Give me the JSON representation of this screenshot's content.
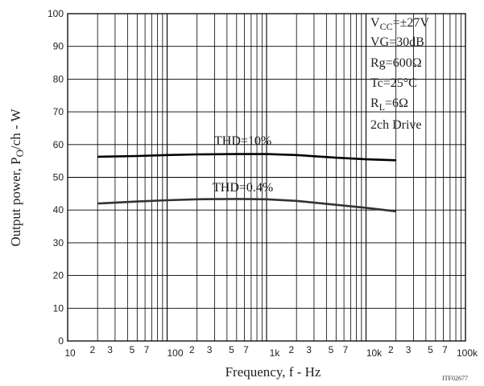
{
  "chart_data": {
    "type": "line",
    "title": "",
    "xlabel": "Frequency, f - Hz",
    "ylabel": "Output power, P_O/ch - W",
    "x_scale": "log",
    "xlim": [
      10,
      100000
    ],
    "ylim": [
      0,
      100
    ],
    "y_ticks": [
      0,
      10,
      20,
      30,
      40,
      50,
      60,
      70,
      80,
      90,
      100
    ],
    "x_tick_labels": [
      {
        "x": 10,
        "label": "10"
      },
      {
        "x": 20,
        "label": "2"
      },
      {
        "x": 30,
        "label": "3"
      },
      {
        "x": 50,
        "label": "5"
      },
      {
        "x": 70,
        "label": "7"
      },
      {
        "x": 100,
        "label": "100"
      },
      {
        "x": 200,
        "label": "2"
      },
      {
        "x": 300,
        "label": "3"
      },
      {
        "x": 500,
        "label": "5"
      },
      {
        "x": 700,
        "label": "7"
      },
      {
        "x": 1000,
        "label": "1k"
      },
      {
        "x": 2000,
        "label": "2"
      },
      {
        "x": 3000,
        "label": "3"
      },
      {
        "x": 5000,
        "label": "5"
      },
      {
        "x": 7000,
        "label": "7"
      },
      {
        "x": 10000,
        "label": "10k"
      },
      {
        "x": 20000,
        "label": "2"
      },
      {
        "x": 30000,
        "label": "3"
      },
      {
        "x": 50000,
        "label": "5"
      },
      {
        "x": 70000,
        "label": "7"
      },
      {
        "x": 100000,
        "label": "100k"
      }
    ],
    "grid": true,
    "series": [
      {
        "name": "THD=10%",
        "color": "#000000",
        "x": [
          20,
          50,
          100,
          200,
          500,
          1000,
          2000,
          5000,
          10000,
          20000
        ],
        "y": [
          56.3,
          56.5,
          56.8,
          57.0,
          57.1,
          57.1,
          56.8,
          56.0,
          55.5,
          55.2
        ]
      },
      {
        "name": "THD=0.4%",
        "color": "#333333",
        "x": [
          20,
          50,
          100,
          200,
          500,
          1000,
          2000,
          5000,
          10000,
          20000
        ],
        "y": [
          42.0,
          42.6,
          43.0,
          43.3,
          43.4,
          43.3,
          42.8,
          41.6,
          40.7,
          39.6
        ]
      }
    ],
    "conditions": [
      "VCC=±27V",
      "VG=30dB",
      "Rg=600Ω",
      "Tc=25°C",
      "RL=6Ω",
      "2ch Drive"
    ],
    "figure_code": "ITF02677"
  }
}
